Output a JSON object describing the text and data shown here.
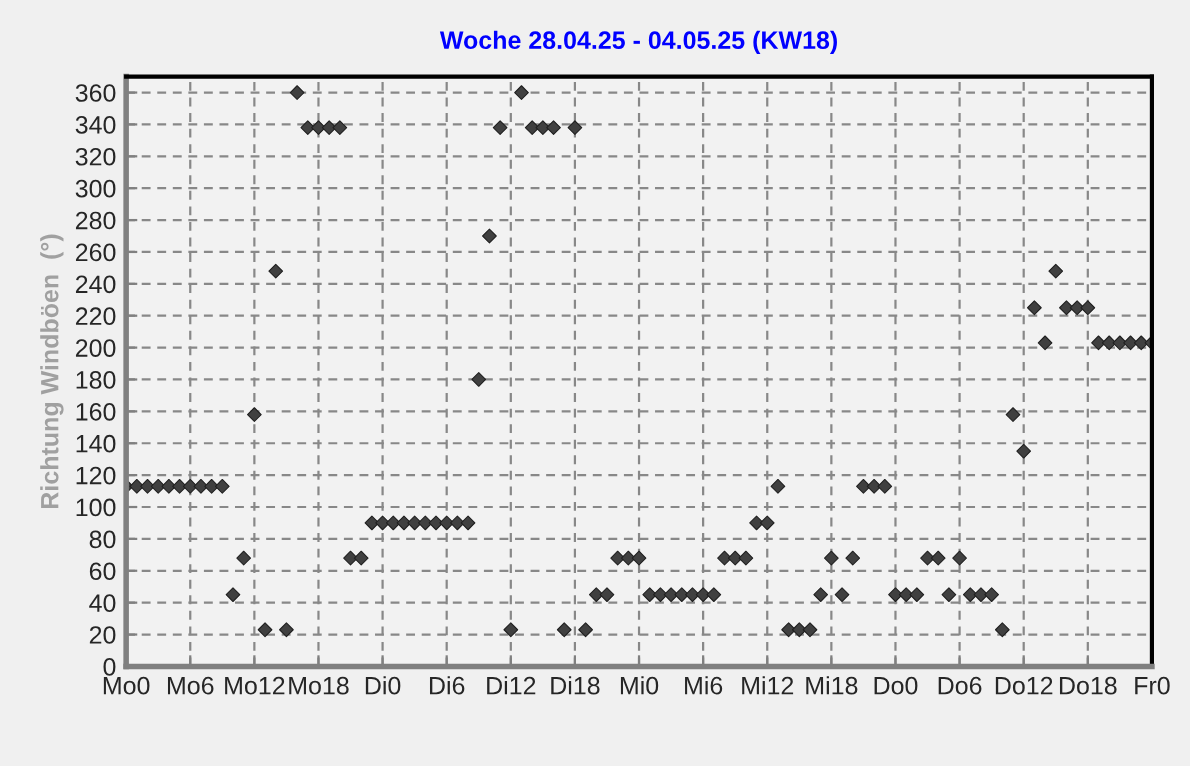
{
  "chart_data": {
    "type": "scatter",
    "title": "Woche 28.04.25 - 04.05.25 (KW18)",
    "ylabel": "Richtung Windböen  (°)",
    "categories": [
      "Mo0",
      null,
      null,
      null,
      null,
      null,
      "Mo6",
      null,
      null,
      null,
      null,
      null,
      "Mo12",
      null,
      null,
      null,
      null,
      null,
      "Mo18",
      null,
      null,
      null,
      null,
      null,
      "Di0",
      null,
      null,
      null,
      null,
      null,
      "Di6",
      null,
      null,
      null,
      null,
      null,
      "Di12",
      null,
      null,
      null,
      null,
      null,
      "Di18",
      null,
      null,
      null,
      null,
      null,
      "Mi0",
      null,
      null,
      null,
      null,
      null,
      "Mi6",
      null,
      null,
      null,
      null,
      null,
      "Mi12",
      null,
      null,
      null,
      null,
      null,
      "Mi18",
      null,
      null,
      null,
      null,
      null,
      "Do0",
      null,
      null,
      null,
      null,
      null,
      "Do6",
      null,
      null,
      null,
      null,
      null,
      "Do12",
      null,
      null,
      null,
      null,
      null,
      "Do18",
      null,
      null,
      null,
      null,
      null,
      "Fr0"
    ],
    "ylim": [
      0,
      370
    ],
    "yticks": [
      0,
      20,
      40,
      60,
      80,
      100,
      120,
      140,
      160,
      180,
      200,
      220,
      240,
      260,
      280,
      300,
      320,
      340,
      360
    ],
    "grid": true,
    "marker": "diamond",
    "series": [
      {
        "color": "#404040",
        "values": [
          113,
          113,
          113,
          113,
          113,
          113,
          113,
          113,
          113,
          113,
          45,
          68,
          158,
          23,
          248,
          23,
          360,
          338,
          338,
          338,
          338,
          68,
          68,
          90,
          90,
          90,
          90,
          90,
          90,
          90,
          90,
          90,
          90,
          180,
          270,
          338,
          23,
          360,
          338,
          338,
          338,
          23,
          338,
          23,
          45,
          45,
          68,
          68,
          68,
          45,
          45,
          45,
          45,
          45,
          45,
          45,
          68,
          68,
          68,
          90,
          90,
          113,
          23,
          23,
          23,
          45,
          68,
          45,
          68,
          113,
          113,
          113,
          45,
          45,
          45,
          68,
          68,
          45,
          68,
          45,
          45,
          45,
          23,
          158,
          135,
          225,
          203,
          248,
          225,
          225,
          225,
          203,
          203,
          203,
          203,
          203,
          203
        ]
      }
    ]
  }
}
